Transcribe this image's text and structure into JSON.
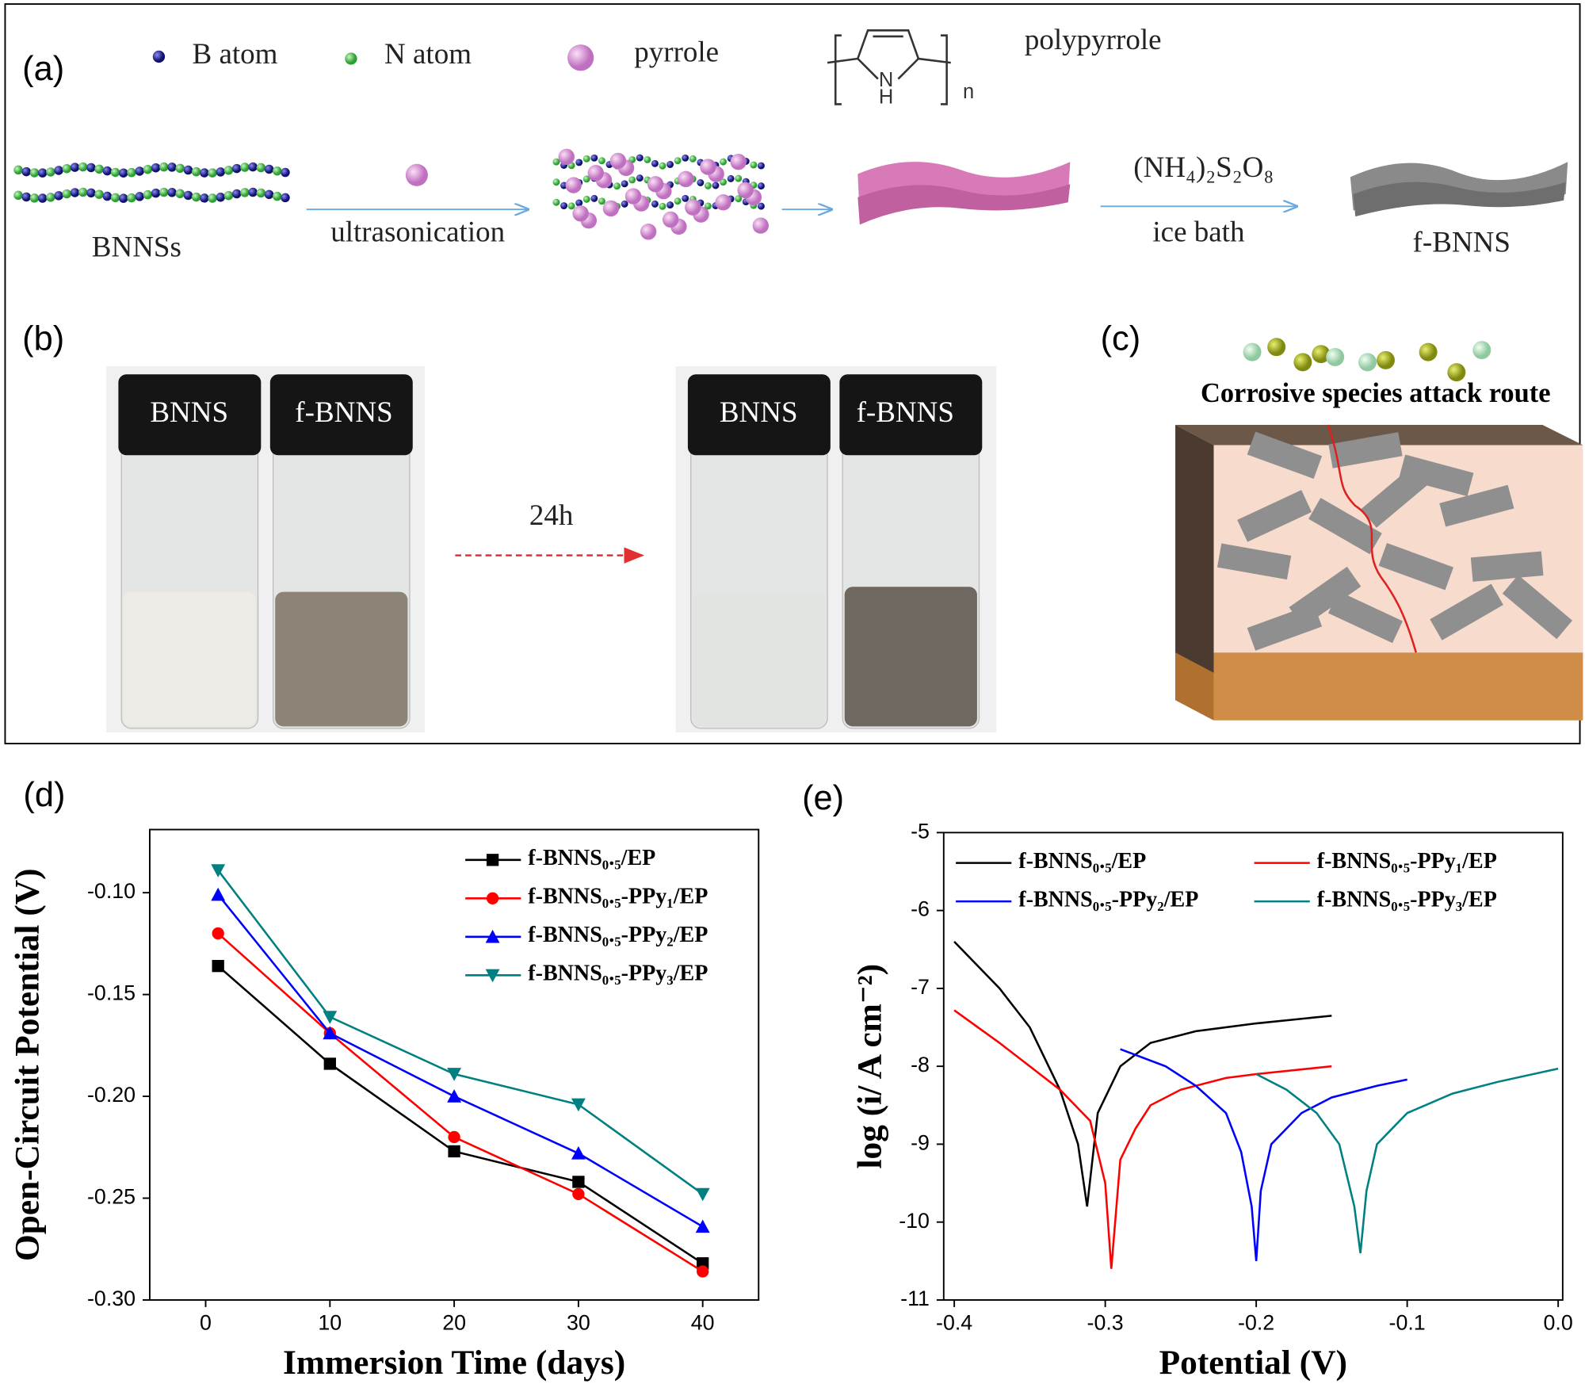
{
  "panel_a": {
    "label": "(a)",
    "legend": {
      "b_atom": "B atom",
      "n_atom": "N atom",
      "pyrrole": "pyrrole",
      "polypyrrole": "polypyrrole"
    },
    "structure": {
      "n_atom": "N",
      "h_atom": "H",
      "repeat": "n"
    },
    "steps": {
      "start": "BNNSs",
      "step1": "ultrasonication",
      "reagent": "(NH₄)₂S₂O₈",
      "condition": "ice bath",
      "product": "f-BNNS"
    }
  },
  "panel_b": {
    "label": "(b)",
    "before": [
      "BNNS",
      "f-BNNS"
    ],
    "time": "24h",
    "after": [
      "BNNS",
      "f-BNNS"
    ]
  },
  "panel_c": {
    "label": "(c)",
    "caption": "Corrosive species attack route"
  },
  "chart_data": [
    {
      "type": "line",
      "panel_label": "(d)",
      "xlabel": "Immersion Time (days)",
      "ylabel": "Open-Circuit Potential (V)",
      "x": [
        1,
        10,
        20,
        30,
        40
      ],
      "xlim": [
        -4.5,
        44.5
      ],
      "xticks": [
        0,
        10,
        20,
        30,
        40
      ],
      "ylim": [
        -0.3,
        -0.069
      ],
      "yticks": [
        {
          "value": -0.3,
          "label": "-0.30"
        },
        {
          "value": -0.25,
          "label": "-0.25"
        },
        {
          "value": -0.2,
          "label": "-0.20"
        },
        {
          "value": -0.15,
          "label": "-0.15"
        },
        {
          "value": -0.1,
          "label": "-0.10"
        }
      ],
      "legend": "upper right",
      "series": [
        {
          "name": "f-BNNS₀.₅/EP",
          "color": "#000000",
          "marker": "square",
          "values": [
            -0.136,
            -0.184,
            -0.227,
            -0.242,
            -0.282
          ]
        },
        {
          "name": "f-BNNS₀.₅-PPy₁/EP",
          "color": "#ff0000",
          "marker": "circle",
          "values": [
            -0.12,
            -0.169,
            -0.22,
            -0.248,
            -0.286
          ]
        },
        {
          "name": "f-BNNS₀.₅-PPy₂/EP",
          "color": "#0000ff",
          "marker": "triangle-up",
          "values": [
            -0.101,
            -0.169,
            -0.2,
            -0.228,
            -0.264
          ]
        },
        {
          "name": "f-BNNS₀.₅-PPy₃/EP",
          "color": "#008080",
          "marker": "triangle-down",
          "values": [
            -0.089,
            -0.161,
            -0.189,
            -0.204,
            -0.248
          ]
        }
      ]
    },
    {
      "type": "line",
      "panel_label": "(e)",
      "xlabel": "Potential (V)",
      "ylabel": "log (i/ A cm⁻²)",
      "xlim": [
        -0.407,
        0.003
      ],
      "xticks": [
        -0.4,
        -0.3,
        -0.2,
        -0.1,
        {
          "value": 0,
          "label": "0.0"
        }
      ],
      "ylim": [
        -11,
        -5
      ],
      "yticks": [
        -11,
        -10,
        -9,
        -8,
        -7,
        -6,
        -5
      ],
      "legend": "top",
      "series": [
        {
          "name": "f-BNNS₀.₅/EP",
          "color": "#000000",
          "x": [
            -0.4,
            -0.37,
            -0.35,
            -0.33,
            -0.318,
            -0.312,
            -0.305,
            -0.29,
            -0.27,
            -0.24,
            -0.2,
            -0.15
          ],
          "values": [
            -6.4,
            -7.0,
            -7.5,
            -8.3,
            -9.0,
            -9.8,
            -8.6,
            -8.0,
            -7.7,
            -7.55,
            -7.45,
            -7.35
          ]
        },
        {
          "name": "f-BNNS₀.₅-PPy₁/EP",
          "color": "#ff0000",
          "x": [
            -0.4,
            -0.37,
            -0.35,
            -0.33,
            -0.31,
            -0.3,
            -0.296,
            -0.29,
            -0.28,
            -0.27,
            -0.25,
            -0.22,
            -0.2,
            -0.15
          ],
          "values": [
            -7.28,
            -7.7,
            -8.0,
            -8.3,
            -8.7,
            -9.5,
            -10.6,
            -9.2,
            -8.8,
            -8.5,
            -8.3,
            -8.15,
            -8.1,
            -8.0
          ]
        },
        {
          "name": "f-BNNS₀.₅-PPy₂/EP",
          "color": "#0000ff",
          "x": [
            -0.29,
            -0.26,
            -0.24,
            -0.22,
            -0.21,
            -0.203,
            -0.2,
            -0.197,
            -0.19,
            -0.17,
            -0.15,
            -0.12,
            -0.1
          ],
          "values": [
            -7.78,
            -8.0,
            -8.25,
            -8.6,
            -9.1,
            -9.8,
            -10.5,
            -9.6,
            -9.0,
            -8.6,
            -8.4,
            -8.25,
            -8.17
          ]
        },
        {
          "name": "f-BNNS₀.₅-PPy₃/EP",
          "color": "#008080",
          "x": [
            -0.2,
            -0.18,
            -0.16,
            -0.145,
            -0.135,
            -0.131,
            -0.127,
            -0.12,
            -0.1,
            -0.07,
            -0.04,
            0
          ],
          "values": [
            -8.1,
            -8.3,
            -8.6,
            -9.0,
            -9.8,
            -10.4,
            -9.6,
            -9.0,
            -8.6,
            -8.35,
            -8.2,
            -8.03
          ]
        }
      ]
    }
  ]
}
